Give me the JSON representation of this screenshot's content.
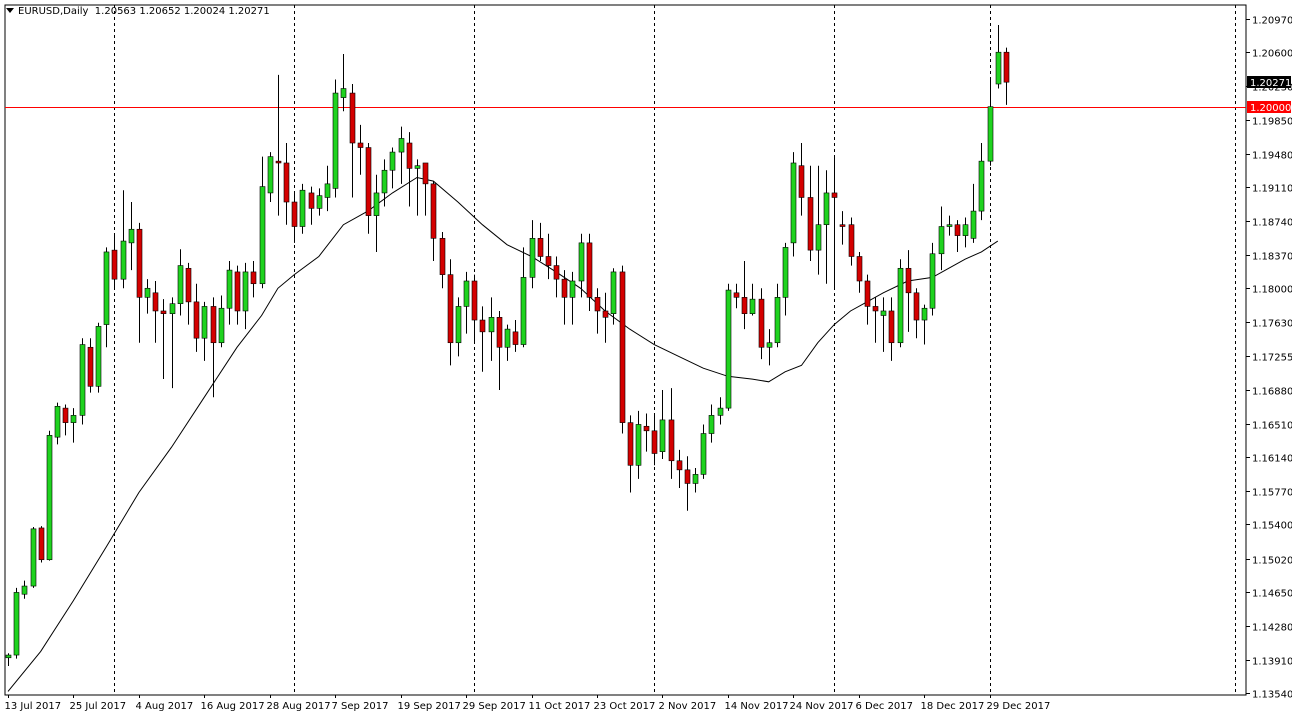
{
  "header": {
    "symbol": "EURUSD,Daily",
    "ohlc": "1.20563 1.20652 1.20024 1.20271"
  },
  "price_tags": {
    "current": "1.20271",
    "level": "1.20000"
  },
  "colors": {
    "background": "#ffffff",
    "bull": "#1fd31f",
    "bear": "#d40000",
    "wick": "#000000",
    "level_line": "#ff0000",
    "current_tag_bg": "#000000",
    "level_tag_bg": "#ff0000"
  },
  "chart_data": {
    "type": "candlestick",
    "yticks": [
      "1.20970",
      "1.20600",
      "1.20230",
      "1.19850",
      "1.19480",
      "1.19110",
      "1.18740",
      "1.18370",
      "1.18000",
      "1.17630",
      "1.17255",
      "1.16880",
      "1.16510",
      "1.16140",
      "1.15770",
      "1.15400",
      "1.15020",
      "1.14650",
      "1.14280",
      "1.13910",
      "1.13540"
    ],
    "ylim": [
      1.1352,
      1.2112
    ],
    "x_labels": [
      {
        "label": "13 Jul 2017",
        "bar": 0
      },
      {
        "label": "25 Jul 2017",
        "bar": 8
      },
      {
        "label": "4 Aug 2017",
        "bar": 16
      },
      {
        "label": "16 Aug 2017",
        "bar": 24
      },
      {
        "label": "28 Aug 2017",
        "bar": 32
      },
      {
        "label": "7 Sep 2017",
        "bar": 40
      },
      {
        "label": "19 Sep 2017",
        "bar": 48
      },
      {
        "label": "29 Sep 2017",
        "bar": 56
      },
      {
        "label": "11 Oct 2017",
        "bar": 64
      },
      {
        "label": "23 Oct 2017",
        "bar": 72
      },
      {
        "label": "2 Nov 2017",
        "bar": 80
      },
      {
        "label": "14 Nov 2017",
        "bar": 88
      },
      {
        "label": "24 Nov 2017",
        "bar": 96
      },
      {
        "label": "6 Dec 2017",
        "bar": 104
      },
      {
        "label": "18 Dec 2017",
        "bar": 112
      },
      {
        "label": "29 Dec 2017",
        "bar": 120
      }
    ],
    "period_separators_bar": [
      13,
      35,
      57,
      79,
      101,
      120,
      150
    ],
    "candles": [
      [
        1.1393,
        1.1396,
        1.1384,
        1.1398
      ],
      [
        1.1396,
        1.1465,
        1.1392,
        1.147
      ],
      [
        1.1463,
        1.1472,
        1.1458,
        1.1478
      ],
      [
        1.1472,
        1.1535,
        1.147,
        1.1537
      ],
      [
        1.1536,
        1.1501,
        1.1498,
        1.1538
      ],
      [
        1.1501,
        1.1638,
        1.15,
        1.1643
      ],
      [
        1.1636,
        1.167,
        1.1628,
        1.1674
      ],
      [
        1.1668,
        1.1652,
        1.1638,
        1.1672
      ],
      [
        1.1652,
        1.166,
        1.163,
        1.1668
      ],
      [
        1.166,
        1.1738,
        1.165,
        1.1745
      ],
      [
        1.1735,
        1.1692,
        1.1685,
        1.1745
      ],
      [
        1.1692,
        1.1758,
        1.1685,
        1.1762
      ],
      [
        1.176,
        1.184,
        1.1735,
        1.1845
      ],
      [
        1.1842,
        1.181,
        1.18,
        1.186
      ],
      [
        1.181,
        1.1852,
        1.18,
        1.1908
      ],
      [
        1.185,
        1.1865,
        1.182,
        1.1895
      ],
      [
        1.1865,
        1.179,
        1.174,
        1.1872
      ],
      [
        1.179,
        1.18,
        1.1772,
        1.181
      ],
      [
        1.1795,
        1.1775,
        1.174,
        1.1808
      ],
      [
        1.1775,
        1.1772,
        1.17,
        1.1788
      ],
      [
        1.1772,
        1.1783,
        1.169,
        1.179
      ],
      [
        1.1783,
        1.1825,
        1.177,
        1.1843
      ],
      [
        1.1822,
        1.1785,
        1.176,
        1.1828
      ],
      [
        1.1785,
        1.1745,
        1.173,
        1.1805
      ],
      [
        1.1745,
        1.178,
        1.172,
        1.1785
      ],
      [
        1.178,
        1.174,
        1.168,
        1.179
      ],
      [
        1.174,
        1.1778,
        1.1735,
        1.1792
      ],
      [
        1.1778,
        1.182,
        1.176,
        1.183
      ],
      [
        1.1818,
        1.1775,
        1.176,
        1.1825
      ],
      [
        1.1775,
        1.1818,
        1.1755,
        1.1828
      ],
      [
        1.1818,
        1.1805,
        1.179,
        1.183
      ],
      [
        1.1805,
        1.1912,
        1.18,
        1.1945
      ],
      [
        1.1905,
        1.1945,
        1.1895,
        1.195
      ],
      [
        1.194,
        1.1938,
        1.188,
        1.2035
      ],
      [
        1.1938,
        1.1895,
        1.187,
        1.196
      ],
      [
        1.1895,
        1.1868,
        1.185,
        1.1905
      ],
      [
        1.1868,
        1.1908,
        1.186,
        1.1915
      ],
      [
        1.1905,
        1.1888,
        1.187,
        1.1912
      ],
      [
        1.1888,
        1.1902,
        1.188,
        1.191
      ],
      [
        1.19,
        1.1915,
        1.1885,
        1.1935
      ],
      [
        1.191,
        1.2015,
        1.19,
        1.203
      ],
      [
        1.201,
        1.202,
        1.1995,
        1.2058
      ],
      [
        1.2015,
        1.196,
        1.19,
        1.2025
      ],
      [
        1.196,
        1.1955,
        1.1925,
        1.198
      ],
      [
        1.1955,
        1.188,
        1.186,
        1.196
      ],
      [
        1.188,
        1.1905,
        1.184,
        1.1925
      ],
      [
        1.1905,
        1.193,
        1.189,
        1.1942
      ],
      [
        1.193,
        1.195,
        1.191,
        1.1955
      ],
      [
        1.195,
        1.1965,
        1.1915,
        1.1978
      ],
      [
        1.196,
        1.1932,
        1.189,
        1.1972
      ],
      [
        1.1932,
        1.1935,
        1.188,
        1.1942
      ],
      [
        1.1938,
        1.1915,
        1.188,
        1.1938
      ],
      [
        1.1915,
        1.1855,
        1.183,
        1.1918
      ],
      [
        1.1855,
        1.1815,
        1.18,
        1.1862
      ],
      [
        1.1815,
        1.174,
        1.1715,
        1.1832
      ],
      [
        1.174,
        1.178,
        1.1725,
        1.179
      ],
      [
        1.178,
        1.1808,
        1.175,
        1.1818
      ],
      [
        1.1808,
        1.1765,
        1.174,
        1.1815
      ],
      [
        1.1765,
        1.1752,
        1.1708,
        1.178
      ],
      [
        1.1752,
        1.1768,
        1.172,
        1.179
      ],
      [
        1.1768,
        1.1735,
        1.1688,
        1.1775
      ],
      [
        1.1735,
        1.1755,
        1.172,
        1.176
      ],
      [
        1.1752,
        1.1738,
        1.173,
        1.1765
      ],
      [
        1.1738,
        1.1812,
        1.1735,
        1.1845
      ],
      [
        1.1812,
        1.1855,
        1.18,
        1.1875
      ],
      [
        1.1855,
        1.1835,
        1.183,
        1.1872
      ],
      [
        1.1835,
        1.1825,
        1.181,
        1.186
      ],
      [
        1.1825,
        1.181,
        1.179,
        1.1835
      ],
      [
        1.181,
        1.179,
        1.176,
        1.182
      ],
      [
        1.179,
        1.1808,
        1.176,
        1.1818
      ],
      [
        1.1808,
        1.185,
        1.179,
        1.186
      ],
      [
        1.185,
        1.179,
        1.1775,
        1.186
      ],
      [
        1.179,
        1.1775,
        1.175,
        1.18
      ],
      [
        1.1775,
        1.1768,
        1.174,
        1.1795
      ],
      [
        1.1772,
        1.1818,
        1.176,
        1.1822
      ],
      [
        1.1818,
        1.1652,
        1.164,
        1.1825
      ],
      [
        1.1652,
        1.1605,
        1.1575,
        1.166
      ],
      [
        1.1605,
        1.165,
        1.159,
        1.1665
      ],
      [
        1.1648,
        1.1643,
        1.162,
        1.1662
      ],
      [
        1.1643,
        1.1618,
        1.1605,
        1.166
      ],
      [
        1.162,
        1.1655,
        1.1612,
        1.1688
      ],
      [
        1.1655,
        1.161,
        1.159,
        1.169
      ],
      [
        1.161,
        1.16,
        1.158,
        1.1622
      ],
      [
        1.16,
        1.1585,
        1.1555,
        1.1615
      ],
      [
        1.1585,
        1.1595,
        1.1575,
        1.1602
      ],
      [
        1.1595,
        1.164,
        1.159,
        1.165
      ],
      [
        1.164,
        1.166,
        1.163,
        1.1672
      ],
      [
        1.166,
        1.1668,
        1.165,
        1.168
      ],
      [
        1.1668,
        1.1798,
        1.1665,
        1.1805
      ],
      [
        1.1795,
        1.179,
        1.1778,
        1.1805
      ],
      [
        1.179,
        1.1772,
        1.1755,
        1.183
      ],
      [
        1.1772,
        1.1788,
        1.177,
        1.1805
      ],
      [
        1.1788,
        1.1735,
        1.1722,
        1.18
      ],
      [
        1.1735,
        1.174,
        1.1715,
        1.1755
      ],
      [
        1.174,
        1.179,
        1.1735,
        1.1805
      ],
      [
        1.179,
        1.1845,
        1.177,
        1.185
      ],
      [
        1.185,
        1.1938,
        1.1835,
        1.195
      ],
      [
        1.1935,
        1.19,
        1.188,
        1.196
      ],
      [
        1.19,
        1.1842,
        1.183,
        1.1935
      ],
      [
        1.1842,
        1.187,
        1.1815,
        1.1935
      ],
      [
        1.187,
        1.1905,
        1.1805,
        1.193
      ],
      [
        1.1905,
        1.19,
        1.18,
        1.1945
      ],
      [
        1.187,
        1.1868,
        1.1848,
        1.1885
      ],
      [
        1.187,
        1.1835,
        1.1825,
        1.1878
      ],
      [
        1.1835,
        1.1808,
        1.1795,
        1.184
      ],
      [
        1.1808,
        1.178,
        1.176,
        1.1815
      ],
      [
        1.178,
        1.1775,
        1.174,
        1.179
      ],
      [
        1.177,
        1.1775,
        1.173,
        1.179
      ],
      [
        1.1775,
        1.174,
        1.172,
        1.179
      ],
      [
        1.174,
        1.1822,
        1.1735,
        1.1832
      ],
      [
        1.1822,
        1.1795,
        1.1752,
        1.1842
      ],
      [
        1.1795,
        1.1765,
        1.1745,
        1.18
      ],
      [
        1.1765,
        1.1778,
        1.1738,
        1.1782
      ],
      [
        1.1778,
        1.1838,
        1.177,
        1.185
      ],
      [
        1.1838,
        1.1868,
        1.182,
        1.189
      ],
      [
        1.1868,
        1.187,
        1.1858,
        1.188
      ],
      [
        1.187,
        1.1858,
        1.184,
        1.1875
      ],
      [
        1.1858,
        1.187,
        1.1845,
        1.1878
      ],
      [
        1.1855,
        1.1885,
        1.185,
        1.1915
      ],
      [
        1.1885,
        1.194,
        1.1875,
        1.196
      ],
      [
        1.194,
        1.2,
        1.1935,
        1.203
      ],
      [
        1.2025,
        1.206,
        1.202,
        1.209
      ],
      [
        1.206,
        1.2027,
        1.2002,
        1.2065
      ]
    ],
    "ma": [
      [
        0,
        1.1356
      ],
      [
        4,
        1.14
      ],
      [
        8,
        1.1456
      ],
      [
        12,
        1.1515
      ],
      [
        16,
        1.1575
      ],
      [
        20,
        1.1625
      ],
      [
        24,
        1.168
      ],
      [
        28,
        1.1735
      ],
      [
        31,
        1.177
      ],
      [
        33,
        1.18
      ],
      [
        35,
        1.1815
      ],
      [
        38,
        1.1835
      ],
      [
        41,
        1.187
      ],
      [
        44,
        1.1885
      ],
      [
        47,
        1.1905
      ],
      [
        50,
        1.1922
      ],
      [
        52,
        1.1918
      ],
      [
        55,
        1.1895
      ],
      [
        58,
        1.187
      ],
      [
        61,
        1.1848
      ],
      [
        64,
        1.1835
      ],
      [
        67,
        1.1818
      ],
      [
        70,
        1.18
      ],
      [
        73,
        1.1775
      ],
      [
        76,
        1.1755
      ],
      [
        79,
        1.1738
      ],
      [
        82,
        1.1725
      ],
      [
        85,
        1.1712
      ],
      [
        88,
        1.1703
      ],
      [
        91,
        1.17
      ],
      [
        93,
        1.1697
      ],
      [
        95,
        1.1708
      ],
      [
        97,
        1.1715
      ],
      [
        99,
        1.174
      ],
      [
        101,
        1.176
      ],
      [
        103,
        1.1775
      ],
      [
        105,
        1.1785
      ],
      [
        107,
        1.1795
      ],
      [
        110,
        1.1808
      ],
      [
        113,
        1.1812
      ],
      [
        115,
        1.1822
      ],
      [
        117,
        1.1832
      ],
      [
        119,
        1.184
      ],
      [
        121,
        1.1852
      ]
    ],
    "levels": [
      1.2
    ]
  }
}
